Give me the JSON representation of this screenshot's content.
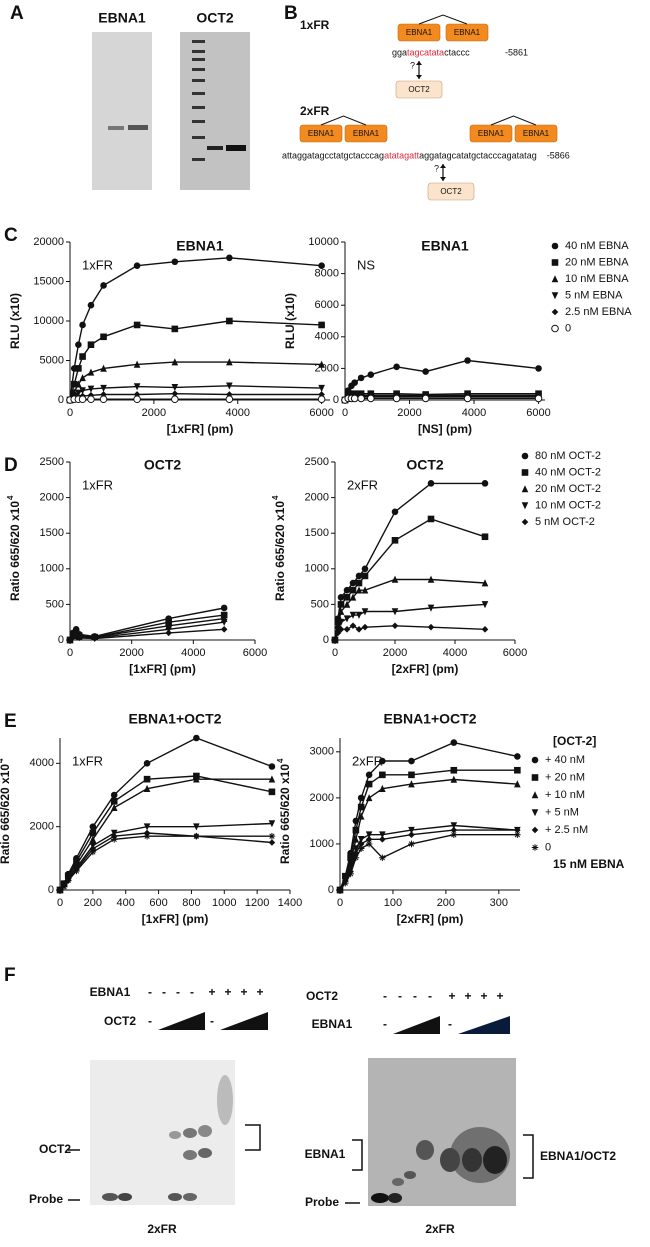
{
  "panel_labels": [
    "A",
    "B",
    "C",
    "D",
    "E",
    "F"
  ],
  "gel_a": {
    "labels": [
      "EBNA1",
      "OCT2"
    ]
  },
  "diagram_b": {
    "one": {
      "label": "1xFR",
      "boxes": [
        "EBNA1",
        "EBNA1"
      ],
      "sequence": [
        "gga",
        "tagcatata",
        "ctaccc"
      ],
      "position": "-5861",
      "question": "?",
      "partner": "OCT2"
    },
    "two": {
      "label": "2xFR",
      "boxes": [
        "EBNA1",
        "EBNA1",
        "EBNA1",
        "EBNA1"
      ],
      "sequence": [
        "attaggatagcctatgctacccag",
        "atatagatt",
        "aggatagcatatgctacccagatatag"
      ],
      "position": "-5866",
      "question": "?",
      "partner": "OCT2"
    }
  },
  "chart_data": [
    {
      "type": "line",
      "title": "EBNA1",
      "annotation": "1xFR",
      "x_label": "[1xFR] (pm)",
      "y_label": "RLU (x10)",
      "xlim": [
        0,
        6200
      ],
      "xticks": [
        0,
        2000,
        4000,
        6000
      ],
      "ylim": [
        0,
        20000
      ],
      "yticks": [
        0,
        5000,
        10000,
        15000,
        20000
      ],
      "x": [
        0,
        100,
        200,
        300,
        500,
        800,
        1600,
        2500,
        3800,
        6000
      ],
      "series": [
        {
          "marker": "circle",
          "color": "#111111",
          "values": [
            0,
            4000,
            7000,
            9500,
            12000,
            14500,
            17000,
            17500,
            18000,
            17000
          ]
        },
        {
          "marker": "square",
          "color": "#111111",
          "values": [
            0,
            2000,
            4000,
            5500,
            7000,
            8000,
            9500,
            9000,
            10000,
            9500
          ]
        },
        {
          "marker": "triangle",
          "color": "#111111",
          "values": [
            0,
            1000,
            2000,
            2800,
            3500,
            4000,
            4500,
            4800,
            4800,
            4500
          ]
        },
        {
          "marker": "triangle-down",
          "color": "#111111",
          "values": [
            0,
            500,
            900,
            1200,
            1400,
            1500,
            1700,
            1600,
            1800,
            1500
          ]
        },
        {
          "marker": "diamond",
          "color": "#111111",
          "values": [
            0,
            200,
            400,
            500,
            600,
            700,
            700,
            800,
            700,
            700
          ]
        },
        {
          "marker": "circle-open",
          "color": "#111111",
          "values": [
            0,
            100,
            100,
            100,
            100,
            100,
            100,
            100,
            100,
            100
          ]
        }
      ]
    },
    {
      "type": "line",
      "title": "EBNA1",
      "annotation": "NS",
      "x_label": "[NS] (pm)",
      "y_label": "RLU (x10)",
      "xlim": [
        0,
        6200
      ],
      "xticks": [
        0,
        2000,
        4000,
        6000
      ],
      "ylim": [
        0,
        10000
      ],
      "yticks": [
        0,
        2000,
        4000,
        6000,
        8000,
        10000
      ],
      "x": [
        0,
        100,
        200,
        300,
        500,
        800,
        1600,
        2500,
        3800,
        6000
      ],
      "legend": "outside-right",
      "series": [
        {
          "name": "40 nM EBNA",
          "marker": "circle",
          "color": "#111111",
          "values": [
            0,
            600,
            900,
            1100,
            1400,
            1600,
            2100,
            1800,
            2500,
            2000
          ]
        },
        {
          "name": "20 nM EBNA",
          "marker": "square",
          "color": "#111111",
          "values": [
            0,
            300,
            350,
            400,
            400,
            400,
            400,
            350,
            400,
            400
          ]
        },
        {
          "name": "10 nM EBNA",
          "marker": "triangle",
          "color": "#111111",
          "values": [
            0,
            250,
            300,
            300,
            300,
            300,
            300,
            300,
            300,
            300
          ]
        },
        {
          "name": "5 nM EBNA",
          "marker": "triangle-down",
          "color": "#111111",
          "values": [
            0,
            200,
            250,
            250,
            250,
            250,
            250,
            250,
            250,
            250
          ]
        },
        {
          "name": "2.5 nM EBNA",
          "marker": "diamond",
          "color": "#111111",
          "values": [
            0,
            150,
            200,
            200,
            200,
            200,
            200,
            200,
            200,
            200
          ]
        },
        {
          "name": "0",
          "marker": "circle-open",
          "color": "#111111",
          "values": [
            0,
            100,
            100,
            100,
            100,
            100,
            100,
            100,
            100,
            100
          ]
        }
      ]
    },
    {
      "type": "line",
      "title": "OCT2",
      "annotation": "1xFR",
      "x_label": "[1xFR] (pm)",
      "y_label": "Ratio 665/620 x10",
      "y_label_sup": "4",
      "xlim": [
        0,
        6000
      ],
      "xticks": [
        0,
        2000,
        4000,
        6000
      ],
      "ylim": [
        0,
        2500
      ],
      "yticks": [
        0,
        500,
        1000,
        1500,
        2000,
        2500
      ],
      "x": [
        0,
        100,
        200,
        300,
        800,
        3200,
        5000
      ],
      "series": [
        {
          "marker": "circle",
          "color": "#111111",
          "values": [
            0,
            100,
            150,
            80,
            50,
            300,
            450
          ]
        },
        {
          "marker": "square",
          "color": "#111111",
          "values": [
            0,
            80,
            100,
            60,
            40,
            250,
            350
          ]
        },
        {
          "marker": "triangle",
          "color": "#111111",
          "values": [
            0,
            60,
            80,
            50,
            40,
            200,
            300
          ]
        },
        {
          "marker": "triangle-down",
          "color": "#111111",
          "values": [
            0,
            50,
            60,
            40,
            30,
            150,
            250
          ]
        },
        {
          "marker": "diamond",
          "color": "#111111",
          "values": [
            0,
            40,
            50,
            30,
            20,
            100,
            150
          ]
        }
      ]
    },
    {
      "type": "line",
      "title": "OCT2",
      "annotation": "2xFR",
      "x_label": "[2xFR] (pm)",
      "y_label": "Ratio 665/620 x10",
      "y_label_sup": "4",
      "xlim": [
        0,
        6000
      ],
      "xticks": [
        0,
        2000,
        4000,
        6000
      ],
      "ylim": [
        0,
        2500
      ],
      "yticks": [
        0,
        500,
        1000,
        1500,
        2000,
        2500
      ],
      "x": [
        0,
        100,
        200,
        400,
        600,
        800,
        1000,
        2000,
        3200,
        5000
      ],
      "legend": "outside-right",
      "series": [
        {
          "name": "80 nM OCT-2",
          "marker": "circle",
          "color": "#111111",
          "values": [
            0,
            300,
            600,
            700,
            800,
            900,
            1000,
            1800,
            2200,
            2200
          ]
        },
        {
          "name": "40 nM OCT-2",
          "marker": "square",
          "color": "#111111",
          "values": [
            0,
            250,
            500,
            600,
            700,
            800,
            900,
            1400,
            1700,
            1450
          ]
        },
        {
          "name": "20 nM OCT-2",
          "marker": "triangle",
          "color": "#111111",
          "values": [
            0,
            200,
            400,
            500,
            600,
            700,
            700,
            850,
            850,
            800
          ]
        },
        {
          "name": "10 nM OCT-2",
          "marker": "triangle-down",
          "color": "#111111",
          "values": [
            0,
            150,
            250,
            300,
            350,
            350,
            400,
            400,
            450,
            500
          ]
        },
        {
          "name": "5 nM OCT-2",
          "marker": "diamond",
          "color": "#111111",
          "values": [
            0,
            100,
            150,
            150,
            200,
            150,
            180,
            200,
            180,
            150
          ]
        }
      ]
    },
    {
      "type": "line",
      "title": "EBNA1+OCT2",
      "annotation": "1xFR",
      "x_label": "[1xFR] (pm)",
      "y_label": "Ratio 665/620 x10",
      "y_label_sup": "4",
      "xlim": [
        0,
        1400
      ],
      "xticks": [
        0,
        200,
        400,
        600,
        800,
        1000,
        1200,
        1400
      ],
      "ylim": [
        0,
        4800
      ],
      "yticks": [
        0,
        2000,
        4000
      ],
      "x": [
        0,
        25,
        50,
        100,
        200,
        330,
        530,
        830,
        1290
      ],
      "series": [
        {
          "marker": "circle",
          "color": "#111111",
          "values": [
            0,
            200,
            500,
            1000,
            2000,
            3000,
            4000,
            4800,
            3900
          ]
        },
        {
          "marker": "square",
          "color": "#111111",
          "values": [
            0,
            200,
            450,
            900,
            1800,
            2800,
            3500,
            3600,
            3100
          ]
        },
        {
          "marker": "triangle",
          "color": "#111111",
          "values": [
            0,
            200,
            400,
            800,
            1600,
            2600,
            3200,
            3500,
            3500
          ]
        },
        {
          "marker": "triangle-down",
          "color": "#111111",
          "values": [
            0,
            150,
            350,
            700,
            1400,
            1800,
            2000,
            2000,
            2100
          ]
        },
        {
          "marker": "diamond",
          "color": "#111111",
          "values": [
            0,
            150,
            300,
            650,
            1300,
            1700,
            1800,
            1700,
            1500
          ]
        },
        {
          "marker": "asterisk",
          "color": "#111111",
          "values": [
            0,
            100,
            300,
            600,
            1200,
            1600,
            1700,
            1700,
            1700
          ]
        }
      ]
    },
    {
      "type": "line",
      "title": "EBNA1+OCT2",
      "annotation": "2xFR",
      "x_label": "[2xFR] (pm)",
      "y_label": "Ratio 665/620 x10",
      "y_label_sup": "4",
      "xlim": [
        0,
        340
      ],
      "xticks": [
        0,
        100,
        200,
        300
      ],
      "ylim": [
        0,
        3300
      ],
      "yticks": [
        0,
        1000,
        2000,
        3000
      ],
      "x": [
        0,
        10,
        20,
        30,
        40,
        55,
        80,
        135,
        215,
        335
      ],
      "legend": "outside-right",
      "legend_title": "[OCT-2]",
      "note": "15 nM EBNA",
      "series": [
        {
          "name": "+ 40 nM",
          "marker": "circle",
          "color": "#111111",
          "values": [
            0,
            300,
            800,
            1500,
            2000,
            2500,
            2800,
            2800,
            3200,
            2900
          ]
        },
        {
          "name": "+ 20 nM",
          "marker": "square",
          "color": "#111111",
          "values": [
            0,
            300,
            700,
            1300,
            1800,
            2300,
            2500,
            2500,
            2600,
            2600
          ]
        },
        {
          "name": "+ 10 nM",
          "marker": "triangle",
          "color": "#111111",
          "values": [
            0,
            250,
            600,
            1100,
            1600,
            2000,
            2200,
            2300,
            2400,
            2300
          ]
        },
        {
          "name": "+ 5 nM",
          "marker": "triangle-down",
          "color": "#111111",
          "values": [
            0,
            200,
            500,
            900,
            1100,
            1200,
            1200,
            1300,
            1400,
            1300
          ]
        },
        {
          "name": "+ 2.5 nM",
          "marker": "diamond",
          "color": "#111111",
          "values": [
            0,
            200,
            400,
            800,
            1000,
            1100,
            1100,
            1200,
            1300,
            1300
          ]
        },
        {
          "name": "0",
          "marker": "asterisk",
          "color": "#111111",
          "values": [
            0,
            150,
            350,
            700,
            900,
            1000,
            700,
            1000,
            1200,
            1200
          ]
        }
      ]
    }
  ],
  "gel_f": {
    "left": {
      "row1_label": "EBNA1",
      "row1_signs": [
        "-",
        "-",
        "-",
        "-",
        "+",
        "+",
        "+",
        "+"
      ],
      "row2_label": "OCT2",
      "row2_signs": [
        "-",
        "-"
      ],
      "band_labels": [
        "OCT2",
        "Probe"
      ],
      "footer": "2xFR"
    },
    "right": {
      "row1_label": "OCT2",
      "row1_signs": [
        "-",
        "-",
        "-",
        "-",
        "+",
        "+",
        "+",
        "+"
      ],
      "row2_label": "EBNA1",
      "row2_signs": [
        "-",
        "-"
      ],
      "band_labels": [
        "EBNA1",
        "Probe"
      ],
      "side_label": "EBNA1/OCT2",
      "footer": "2xFR"
    }
  }
}
